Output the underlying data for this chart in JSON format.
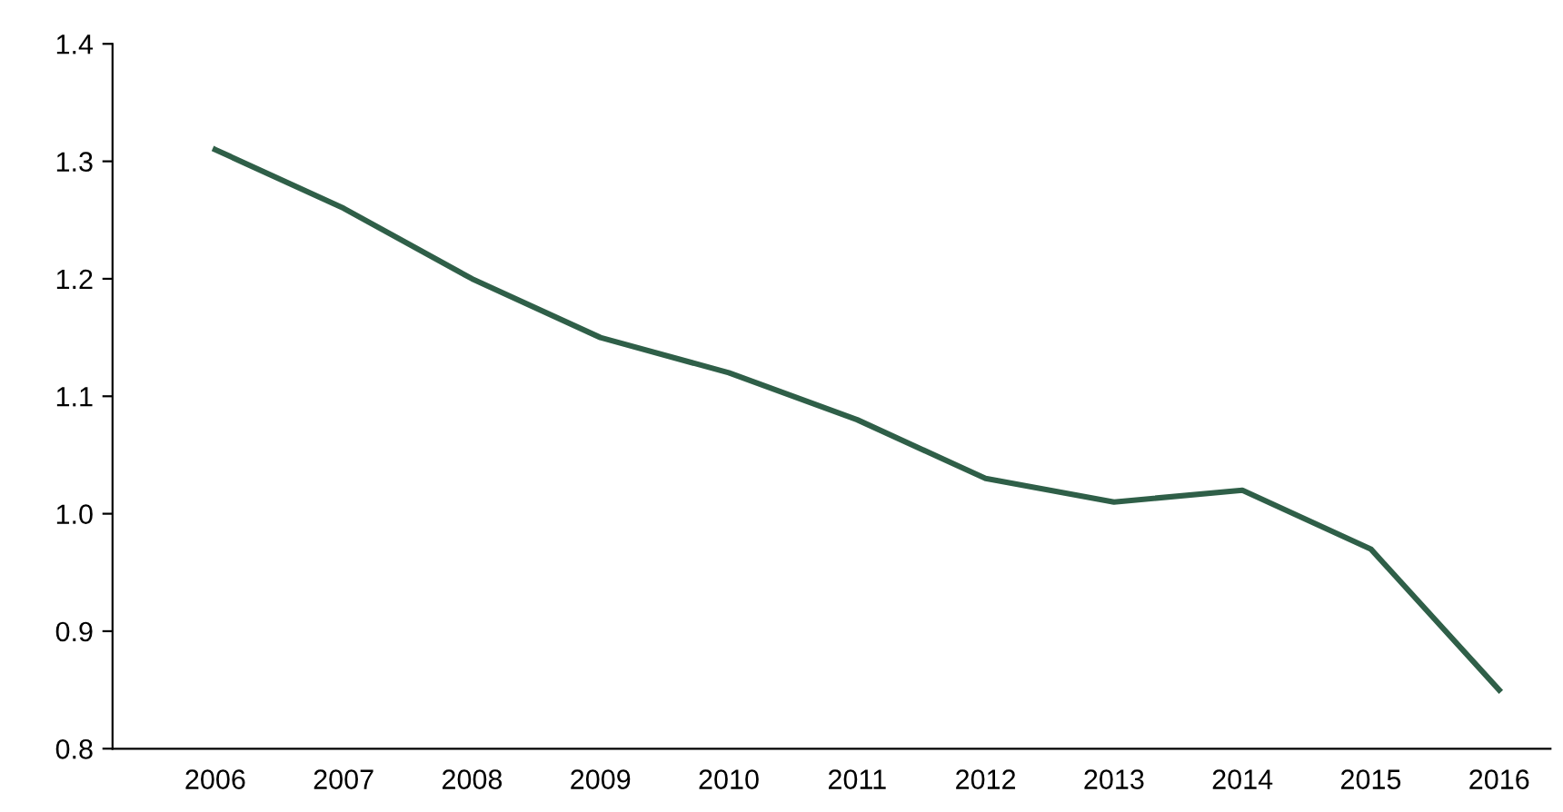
{
  "chart_data": {
    "type": "line",
    "categories": [
      "2006",
      "2007",
      "2008",
      "2009",
      "2010",
      "2011",
      "2012",
      "2013",
      "2014",
      "2015",
      "2016"
    ],
    "series": [
      {
        "color": "#2f5f48",
        "values": [
          1.31,
          1.26,
          1.2,
          1.15,
          1.12,
          1.08,
          1.03,
          1.01,
          1.02,
          0.97,
          0.85
        ]
      }
    ],
    "ylim": [
      0.8,
      1.4
    ],
    "yticks": [
      {
        "value": 0.8,
        "label": "0.8"
      },
      {
        "value": 0.9,
        "label": "0.9"
      },
      {
        "value": 1.0,
        "label": "1.0"
      },
      {
        "value": 1.1,
        "label": "1.1"
      },
      {
        "value": 1.2,
        "label": "1.2"
      },
      {
        "value": 1.3,
        "label": "1.3"
      },
      {
        "value": 1.4,
        "label": "1.4"
      }
    ],
    "grid": false,
    "legend": false,
    "marker": "none",
    "line_style": "solid"
  }
}
